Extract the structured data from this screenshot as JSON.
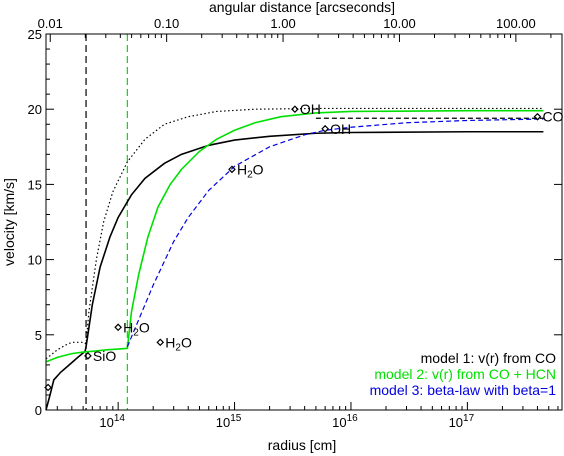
{
  "chart_data": {
    "type": "line",
    "xlabel": "radius [cm]",
    "ylabel": "velocity [km/s]",
    "x2label": "angular distance [arcseconds]",
    "xscale": "log",
    "xlim": [
      24000000000000.0,
      6.5e+17
    ],
    "ylim": [
      0,
      25
    ],
    "xticks": [
      {
        "value": 100000000000000.0,
        "base": "10",
        "exp": "14"
      },
      {
        "value": 1000000000000000.0,
        "base": "10",
        "exp": "15"
      },
      {
        "value": 1e+16,
        "base": "10",
        "exp": "16"
      },
      {
        "value": 1e+17,
        "base": "10",
        "exp": "17"
      }
    ],
    "yticks": [
      0,
      5,
      10,
      15,
      20,
      25
    ],
    "x2ticks": [
      {
        "label": "0.01",
        "radius": 26100000000000.0
      },
      {
        "label": "0.10",
        "radius": 261000000000000.0
      },
      {
        "label": "1.00",
        "radius": 2610000000000000.0
      },
      {
        "label": "10.00",
        "radius": 2.61e+16
      },
      {
        "label": "100.00",
        "radius": 2.61e+17
      }
    ],
    "vlines": [
      {
        "x": 53000000000000.0,
        "color": "#000000",
        "dash": "long"
      },
      {
        "x": 120000000000000.0,
        "color": "#00e000",
        "dash": "long"
      }
    ],
    "series": [
      {
        "name": "model 1: v(r) from CO",
        "color": "#000000",
        "dash": "solid",
        "points": [
          [
            24000000000000.0,
            0
          ],
          [
            26000000000000.0,
            1.0
          ],
          [
            28000000000000.0,
            2.0
          ],
          [
            32000000000000.0,
            2.5
          ],
          [
            38000000000000.0,
            3.0
          ],
          [
            45000000000000.0,
            3.5
          ],
          [
            52000000000000.0,
            3.9
          ],
          [
            53000000000000.0,
            4.2
          ],
          [
            60000000000000.0,
            7.0
          ],
          [
            70000000000000.0,
            9.5
          ],
          [
            85000000000000.0,
            11.5
          ],
          [
            100000000000000.0,
            12.8
          ],
          [
            130000000000000.0,
            14.3
          ],
          [
            170000000000000.0,
            15.4
          ],
          [
            250000000000000.0,
            16.4
          ],
          [
            350000000000000.0,
            17.0
          ],
          [
            600000000000000.0,
            17.6
          ],
          [
            1000000000000000.0,
            17.95
          ],
          [
            2000000000000000.0,
            18.2
          ],
          [
            5000000000000000.0,
            18.4
          ],
          [
            1e+16,
            18.45
          ],
          [
            1e+17,
            18.5
          ],
          [
            4.5e+17,
            18.5
          ]
        ]
      },
      {
        "name": "model 2: v(r) from CO + HCN",
        "color": "#00e000",
        "dash": "solid",
        "points": [
          [
            24000000000000.0,
            3.2
          ],
          [
            30000000000000.0,
            3.5
          ],
          [
            40000000000000.0,
            3.75
          ],
          [
            50000000000000.0,
            3.85
          ],
          [
            60000000000000.0,
            3.9
          ],
          [
            80000000000000.0,
            4.0
          ],
          [
            100000000000000.0,
            4.05
          ],
          [
            120000000000000.0,
            4.1
          ],
          [
            130000000000000.0,
            6.5
          ],
          [
            150000000000000.0,
            9.0
          ],
          [
            180000000000000.0,
            11.5
          ],
          [
            220000000000000.0,
            13.5
          ],
          [
            280000000000000.0,
            15.0
          ],
          [
            350000000000000.0,
            16.0
          ],
          [
            500000000000000.0,
            17.2
          ],
          [
            700000000000000.0,
            18.0
          ],
          [
            1000000000000000.0,
            18.6
          ],
          [
            1500000000000000.0,
            19.1
          ],
          [
            2500000000000000.0,
            19.5
          ],
          [
            5000000000000000.0,
            19.75
          ],
          [
            1e+16,
            19.85
          ],
          [
            1e+17,
            19.9
          ],
          [
            4.5e+17,
            19.9
          ]
        ]
      },
      {
        "name": "model 3: beta-law with beta=1",
        "color": "#0000e0",
        "dash": "dashed",
        "points": [
          [
            120000000000000.0,
            4.2
          ],
          [
            150000000000000.0,
            6.0
          ],
          [
            200000000000000.0,
            8.3
          ],
          [
            300000000000000.0,
            11.2
          ],
          [
            400000000000000.0,
            12.8
          ],
          [
            600000000000000.0,
            14.6
          ],
          [
            1000000000000000.0,
            16.2
          ],
          [
            2000000000000000.0,
            17.5
          ],
          [
            4000000000000000.0,
            18.3
          ],
          [
            6000000000000000.0,
            18.6
          ],
          [
            1e+16,
            18.8
          ],
          [
            3e+16,
            19.1
          ],
          [
            1e+17,
            19.25
          ],
          [
            4.5e+17,
            19.35
          ]
        ]
      },
      {
        "name": "",
        "color": "#000000",
        "dash": "dotted",
        "points": [
          [
            24000000000000.0,
            3.4
          ],
          [
            30000000000000.0,
            4.0
          ],
          [
            35000000000000.0,
            4.3
          ],
          [
            40000000000000.0,
            4.5
          ],
          [
            45000000000000.0,
            4.5
          ],
          [
            50000000000000.0,
            4.5
          ],
          [
            53000000000000.0,
            4.4
          ],
          [
            56000000000000.0,
            6.5
          ],
          [
            65000000000000.0,
            10.0
          ],
          [
            75000000000000.0,
            12.5
          ],
          [
            90000000000000.0,
            14.5
          ],
          [
            120000000000000.0,
            16.5
          ],
          [
            170000000000000.0,
            18.0
          ],
          [
            250000000000000.0,
            19.0
          ],
          [
            400000000000000.0,
            19.5
          ],
          [
            700000000000000.0,
            19.85
          ],
          [
            1500000000000000.0,
            20.0
          ],
          [
            5000000000000000.0,
            20.05
          ],
          [
            4.5e+17,
            20.05
          ]
        ]
      },
      {
        "name": "",
        "color": "#000000",
        "dash": "dashed",
        "points": [
          [
            5000000000000000.0,
            19.4
          ],
          [
            4.5e+17,
            19.4
          ]
        ]
      }
    ],
    "annotations": [
      {
        "x": 25000000000000.0,
        "y": 1.5,
        "label": "",
        "sub": "",
        "after": ""
      },
      {
        "x": 55000000000000.0,
        "y": 3.6,
        "label": "SiO",
        "sub": "",
        "after": ""
      },
      {
        "x": 100000000000000.0,
        "y": 5.5,
        "label": "H",
        "sub": "2",
        "after": "O"
      },
      {
        "x": 230000000000000.0,
        "y": 4.5,
        "label": "H",
        "sub": "2",
        "after": "O"
      },
      {
        "x": 950000000000000.0,
        "y": 16.0,
        "label": "H",
        "sub": "2",
        "after": "O"
      },
      {
        "x": 3300000000000000.0,
        "y": 20.0,
        "label": "OH",
        "sub": "",
        "after": ""
      },
      {
        "x": 6000000000000000.0,
        "y": 18.7,
        "label": "OH",
        "sub": "",
        "after": ""
      },
      {
        "x": 4e+17,
        "y": 19.5,
        "label": "CO",
        "sub": "",
        "after": ""
      }
    ],
    "legend": {
      "position": "bottom-right",
      "entries": [
        {
          "label": "model 1: v(r) from CO",
          "color": "#000000"
        },
        {
          "label": "model 2: v(r) from CO + HCN",
          "color": "#00e000"
        },
        {
          "label": "model 3: beta-law with beta=1",
          "color": "#0000e0"
        }
      ]
    }
  }
}
